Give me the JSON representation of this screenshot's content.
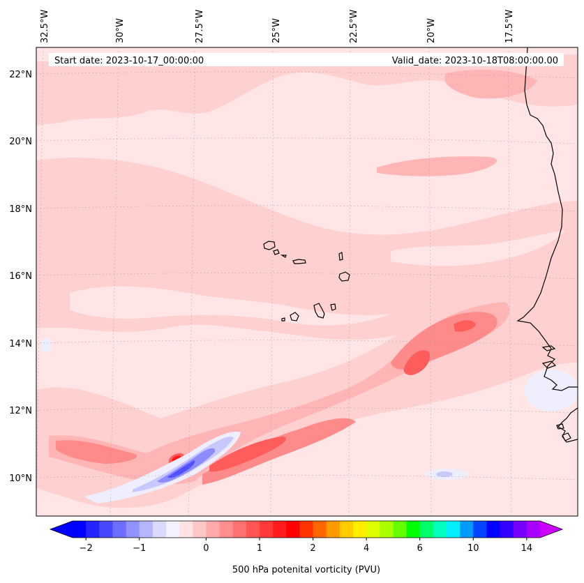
{
  "map": {
    "start_label": "Start date: 2023-10-17_00:00:00",
    "valid_label": "Valid_date: 2023-10-18T08:00:00.00",
    "lon_labels": [
      "32.5°W",
      "30°W",
      "27.5°W",
      "25°W",
      "22.5°W",
      "20°W",
      "17.5°W"
    ],
    "lat_labels": [
      "22°N",
      "20°N",
      "18°N",
      "16°N",
      "14°N",
      "12°N",
      "10°N"
    ]
  },
  "colorbar": {
    "title": "500 hPa potenital vorticity (PVU)",
    "ticks": [
      "−2",
      "−1",
      "0",
      "1",
      "2",
      "4",
      "6",
      "10",
      "14"
    ],
    "colors": [
      "#0000ff",
      "#2424ff",
      "#4848ff",
      "#6d6dff",
      "#9191ff",
      "#b6b6ff",
      "#dadaff",
      "#f1f1ff",
      "#ffe3e3",
      "#ffc6c6",
      "#ffaaaa",
      "#ff8e8e",
      "#ff7171",
      "#ff5555",
      "#ff3939",
      "#ff1c1c",
      "#ff0000",
      "#ff3300",
      "#ff6600",
      "#ff9900",
      "#ffcc00",
      "#ffee00",
      "#ddff00",
      "#aaff00",
      "#66ff00",
      "#00ff00",
      "#00ff66",
      "#00ffbb",
      "#00eeff",
      "#0099ff",
      "#0044ff",
      "#0000ff",
      "#3300ff",
      "#7700ff",
      "#aa00ff"
    ],
    "under_color": "#0000ff",
    "over_color": "#cc00ff"
  },
  "palette": {
    "background": "#ffe5e5",
    "light": "#ffd0d0",
    "medium": "#ffb5b5",
    "strong": "#ff8a8a",
    "intense": "#ff5c5c",
    "peak": "#ff1a1a",
    "blue_faint": "#eeeeff",
    "blue_light": "#c8c8ff",
    "blue_mid": "#8c8cff",
    "blue_deep": "#5050ff"
  }
}
